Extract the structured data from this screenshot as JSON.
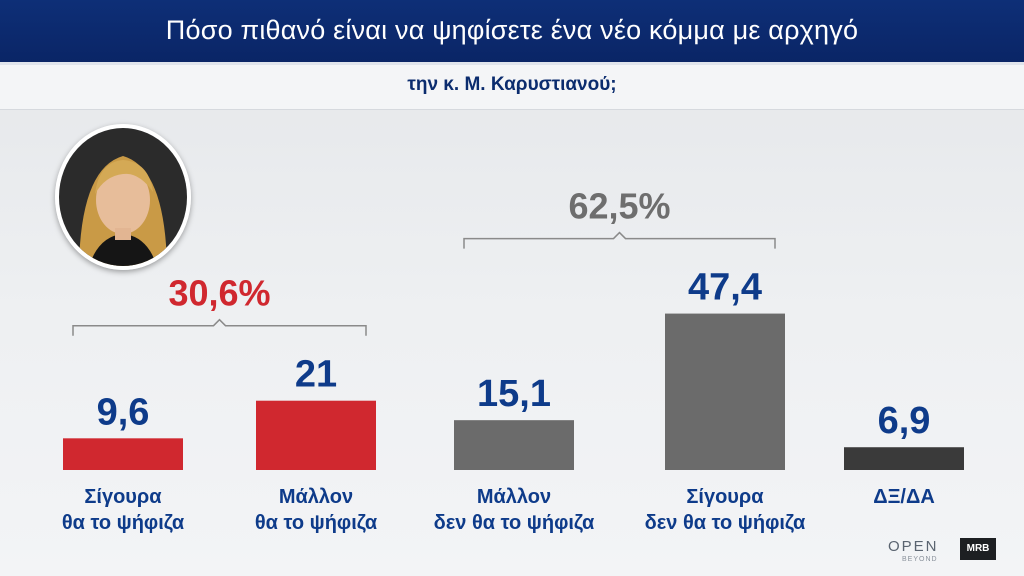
{
  "header": {
    "title": "Πόσο πιθανό είναι να ψηφίσετε ένα νέο κόμμα με αρχηγό",
    "subtitle": "την κ. Μ. Καρυστιανού;"
  },
  "logos": {
    "open": "OPEN",
    "open_tagline": "BEYOND",
    "mrb": "MRB"
  },
  "colors": {
    "red": "#d0282f",
    "gray": "#6b6b6b",
    "dark": "#3a3a3a",
    "value_text": "#0e3b8a",
    "group_red": "#d0282f",
    "group_gray": "#6e6e6e"
  },
  "chart_data": {
    "type": "bar",
    "categories": [
      "Σίγουρα\nθα το ψήφιζα",
      "Μάλλον\nθα το ψήφιζα",
      "Μάλλον\nδεν θα το ψήφιζα",
      "Σίγουρα\nδεν θα το ψήφιζα",
      "ΔΞ/ΔΑ"
    ],
    "values": [
      9.6,
      21,
      15.1,
      47.4,
      6.9
    ],
    "value_labels": [
      "9,6",
      "21",
      "15,1",
      "47,4",
      "6,9"
    ],
    "bar_colors": [
      "#d0282f",
      "#d0282f",
      "#6b6b6b",
      "#6b6b6b",
      "#3a3a3a"
    ],
    "groups": [
      {
        "label": "30,6%",
        "from": 0,
        "to": 1,
        "color": "#d0282f"
      },
      {
        "label": "62,5%",
        "from": 2,
        "to": 3,
        "color": "#6e6e6e"
      }
    ],
    "ylim": [
      0,
      60
    ],
    "grid": false,
    "legend": "none"
  }
}
